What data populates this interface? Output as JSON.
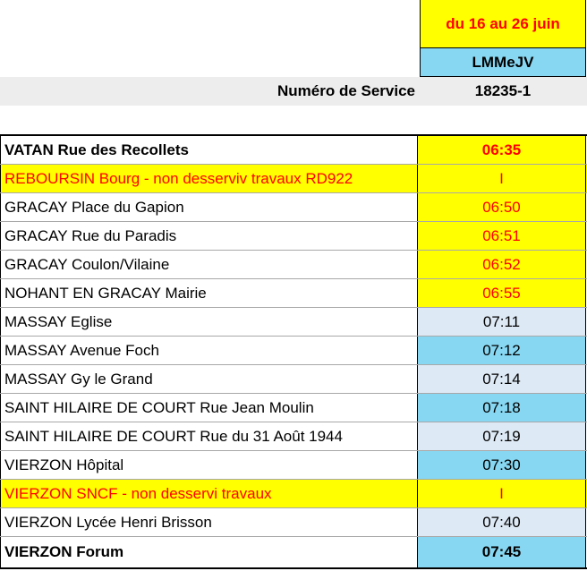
{
  "header": {
    "period": "du 16 au 26  juin",
    "days": "LMMeJV",
    "service_label": "Numéro de Service",
    "service_number": "18235-1"
  },
  "colors": {
    "yellow": "#ffff00",
    "red": "#ff0000",
    "light_blue": "#dde9f5",
    "blue": "#87d7f2"
  },
  "stops": [
    {
      "name": "VATAN Rue des Recollets",
      "time": "06:35"
    },
    {
      "name": "REBOURSIN Bourg - non desserviv travaux RD922",
      "time": "I"
    },
    {
      "name": "GRACAY Place du Gapion",
      "time": "06:50"
    },
    {
      "name": "GRACAY Rue du Paradis",
      "time": "06:51"
    },
    {
      "name": "GRACAY Coulon/Vilaine",
      "time": "06:52"
    },
    {
      "name": "NOHANT EN GRACAY Mairie",
      "time": "06:55"
    },
    {
      "name": "MASSAY Eglise",
      "time": "07:11"
    },
    {
      "name": "MASSAY Avenue Foch",
      "time": "07:12"
    },
    {
      "name": "MASSAY Gy le Grand",
      "time": "07:14"
    },
    {
      "name": "SAINT HILAIRE DE COURT Rue Jean Moulin",
      "time": "07:18"
    },
    {
      "name": "SAINT HILAIRE DE COURT Rue du 31 Août 1944",
      "time": "07:19"
    },
    {
      "name": "VIERZON Hôpital",
      "time": "07:30"
    },
    {
      "name": "VIERZON SNCF - non desservi travaux",
      "time": "I"
    },
    {
      "name": "VIERZON Lycée Henri Brisson",
      "time": "07:40"
    },
    {
      "name": "VIERZON Forum",
      "time": "07:45"
    }
  ]
}
